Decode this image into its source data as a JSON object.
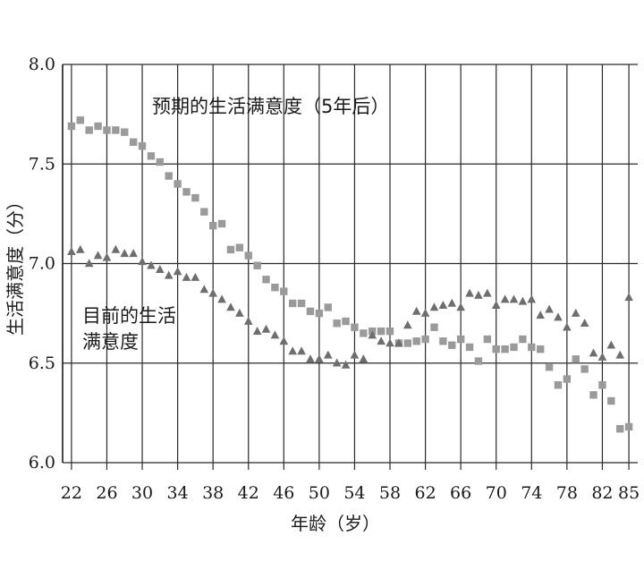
{
  "chart_data": {
    "type": "scatter",
    "title": "",
    "xlabel": "年龄（岁）",
    "ylabel": "生活满意度（分）",
    "xlim": [
      21,
      86
    ],
    "ylim": [
      6.0,
      8.0
    ],
    "grid": true,
    "x_ticks": [
      22,
      26,
      30,
      34,
      38,
      42,
      46,
      50,
      54,
      58,
      62,
      66,
      70,
      74,
      78,
      82,
      85
    ],
    "y_ticks": [
      "6.0",
      "6.5",
      "7.0",
      "7.5",
      "8.0"
    ],
    "x_tick_labels": [
      "22",
      "26",
      "30",
      "34",
      "38",
      "42",
      "46",
      "50",
      "54",
      "58",
      "62",
      "66",
      "70",
      "74",
      "78",
      "82",
      "85"
    ],
    "annotations": [
      {
        "text": "预期的生活满意度（5年后）",
        "series": "expected"
      },
      {
        "text": "目前的生活",
        "series": "current"
      },
      {
        "text": "满意度",
        "series": "current"
      }
    ],
    "series": [
      {
        "key": "expected",
        "marker": "square",
        "color": "#9a9a9a",
        "x": [
          22,
          23,
          24,
          25,
          26,
          27,
          28,
          29,
          30,
          31,
          32,
          33,
          34,
          35,
          36,
          37,
          38,
          39,
          40,
          41,
          42,
          43,
          44,
          45,
          46,
          47,
          48,
          49,
          50,
          51,
          52,
          53,
          54,
          55,
          56,
          57,
          58,
          59,
          60,
          61,
          62,
          63,
          64,
          65,
          66,
          67,
          68,
          69,
          70,
          71,
          72,
          73,
          74,
          75,
          76,
          77,
          78,
          79,
          80,
          81,
          82,
          83,
          84,
          85
        ],
        "y": [
          7.69,
          7.72,
          7.67,
          7.69,
          7.67,
          7.67,
          7.66,
          7.61,
          7.59,
          7.54,
          7.51,
          7.44,
          7.4,
          7.36,
          7.33,
          7.26,
          7.19,
          7.2,
          7.07,
          7.08,
          7.04,
          6.99,
          6.92,
          6.88,
          6.86,
          6.8,
          6.8,
          6.76,
          6.75,
          6.78,
          6.7,
          6.71,
          6.68,
          6.65,
          6.66,
          6.66,
          6.66,
          6.6,
          6.6,
          6.61,
          6.62,
          6.68,
          6.61,
          6.59,
          6.62,
          6.58,
          6.51,
          6.62,
          6.57,
          6.57,
          6.58,
          6.62,
          6.58,
          6.57,
          6.48,
          6.39,
          6.42,
          6.52,
          6.47,
          6.34,
          6.39,
          6.31,
          6.17,
          6.18
        ]
      },
      {
        "key": "current",
        "marker": "triangle",
        "color": "#6e6e6e",
        "x": [
          22,
          23,
          24,
          25,
          26,
          27,
          28,
          29,
          30,
          31,
          32,
          33,
          34,
          35,
          36,
          37,
          38,
          39,
          40,
          41,
          42,
          43,
          44,
          45,
          46,
          47,
          48,
          49,
          50,
          51,
          52,
          53,
          54,
          55,
          56,
          57,
          58,
          59,
          60,
          61,
          62,
          63,
          64,
          65,
          66,
          67,
          68,
          69,
          70,
          71,
          72,
          73,
          74,
          75,
          76,
          77,
          78,
          79,
          80,
          81,
          82,
          83,
          84,
          85
        ],
        "y": [
          7.06,
          7.07,
          7.0,
          7.04,
          7.03,
          7.07,
          7.05,
          7.05,
          7.01,
          6.99,
          6.97,
          6.94,
          6.96,
          6.93,
          6.93,
          6.87,
          6.85,
          6.82,
          6.78,
          6.75,
          6.71,
          6.66,
          6.67,
          6.64,
          6.61,
          6.56,
          6.56,
          6.52,
          6.52,
          6.54,
          6.5,
          6.49,
          6.54,
          6.52,
          6.64,
          6.61,
          6.6,
          6.6,
          6.69,
          6.76,
          6.75,
          6.78,
          6.79,
          6.8,
          6.78,
          6.85,
          6.84,
          6.85,
          6.79,
          6.82,
          6.82,
          6.81,
          6.82,
          6.74,
          6.77,
          6.73,
          6.68,
          6.75,
          6.7,
          6.55,
          6.53,
          6.59,
          6.54,
          6.83
        ]
      }
    ]
  }
}
